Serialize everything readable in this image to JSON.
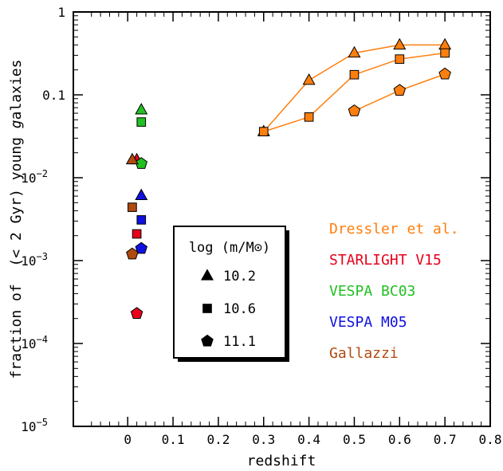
{
  "chart_data": {
    "type": "scatter",
    "xlabel": "redshift",
    "ylabel_parts": [
      "fraction of  (< 2 Gyr) young ",
      "g",
      "alaxies"
    ],
    "xlim": [
      -0.12,
      0.8
    ],
    "ylim": [
      1e-05,
      1
    ],
    "y_scale": "log",
    "x_ticks": [
      "0",
      "0.1",
      "0.2",
      "0.3",
      "0.4",
      "0.5",
      "0.6",
      "0.7",
      "0.8"
    ],
    "x_tick_values": [
      0,
      0.1,
      0.2,
      0.3,
      0.4,
      0.5,
      0.6,
      0.7,
      0.8
    ],
    "y_ticks": [
      {
        "value": 1,
        "label": "1",
        "sup": ""
      },
      {
        "value": 0.1,
        "label": "0.1",
        "sup": ""
      },
      {
        "value": 0.01,
        "label": "10",
        "sup": "−2"
      },
      {
        "value": 0.001,
        "label": "10",
        "sup": "−3"
      },
      {
        "value": 0.0001,
        "label": "10",
        "sup": "−4"
      },
      {
        "value": 1e-05,
        "label": "10",
        "sup": "−5"
      }
    ],
    "mass_legend": {
      "title": "log (m/M⊙)",
      "items": [
        {
          "marker": "triangle",
          "label": "10.2"
        },
        {
          "marker": "square",
          "label": "10.6"
        },
        {
          "marker": "pentagon",
          "label": "11.1"
        }
      ]
    },
    "sources": [
      {
        "name": "Dressler et al.",
        "color": "#ff7f0e"
      },
      {
        "name": "STARLIGHT V15",
        "color": "#e8001c"
      },
      {
        "name": "VESPA BC03",
        "color": "#22c022"
      },
      {
        "name": "VESPA M05",
        "color": "#1010e0"
      },
      {
        "name": "Gallazzi",
        "color": "#b04a10"
      }
    ],
    "series": [
      {
        "source": "Dressler et al.",
        "marker": "triangle",
        "line": true,
        "color": "#ff7f0e",
        "points": [
          [
            0.3,
            0.036
          ],
          [
            0.4,
            0.15
          ],
          [
            0.5,
            0.32
          ],
          [
            0.6,
            0.4
          ],
          [
            0.7,
            0.4
          ]
        ]
      },
      {
        "source": "Dressler et al.",
        "marker": "square",
        "line": true,
        "color": "#ff7f0e",
        "points": [
          [
            0.3,
            0.036
          ],
          [
            0.4,
            0.054
          ],
          [
            0.5,
            0.175
          ],
          [
            0.6,
            0.27
          ],
          [
            0.7,
            0.32
          ]
        ]
      },
      {
        "source": "Dressler et al.",
        "marker": "pentagon",
        "line": true,
        "color": "#ff7f0e",
        "points": [
          [
            0.5,
            0.064
          ],
          [
            0.6,
            0.113
          ],
          [
            0.7,
            0.178
          ]
        ]
      },
      {
        "source": "STARLIGHT V15",
        "marker": "triangle",
        "line": false,
        "color": "#e8001c",
        "points": [
          [
            0.02,
            0.0165
          ]
        ]
      },
      {
        "source": "STARLIGHT V15",
        "marker": "square",
        "line": false,
        "color": "#e8001c",
        "points": [
          [
            0.02,
            0.0021
          ]
        ]
      },
      {
        "source": "STARLIGHT V15",
        "marker": "pentagon",
        "line": false,
        "color": "#e8001c",
        "points": [
          [
            0.02,
            0.00023
          ]
        ]
      },
      {
        "source": "VESPA BC03",
        "marker": "triangle",
        "line": false,
        "color": "#22c022",
        "points": [
          [
            0.03,
            0.066
          ]
        ]
      },
      {
        "source": "VESPA BC03",
        "marker": "square",
        "line": false,
        "color": "#22c022",
        "points": [
          [
            0.03,
            0.047
          ]
        ]
      },
      {
        "source": "VESPA BC03",
        "marker": "pentagon",
        "line": false,
        "color": "#22c022",
        "points": [
          [
            0.03,
            0.0148
          ]
        ]
      },
      {
        "source": "VESPA M05",
        "marker": "triangle",
        "line": false,
        "color": "#1010e0",
        "points": [
          [
            0.03,
            0.0061
          ]
        ]
      },
      {
        "source": "VESPA M05",
        "marker": "square",
        "line": false,
        "color": "#1010e0",
        "points": [
          [
            0.03,
            0.0031
          ]
        ]
      },
      {
        "source": "VESPA M05",
        "marker": "pentagon",
        "line": false,
        "color": "#1010e0",
        "points": [
          [
            0.03,
            0.0014
          ]
        ]
      },
      {
        "source": "Gallazzi",
        "marker": "triangle",
        "line": false,
        "color": "#b04a10",
        "points": [
          [
            0.01,
            0.0165
          ]
        ]
      },
      {
        "source": "Gallazzi",
        "marker": "square",
        "line": false,
        "color": "#b04a10",
        "points": [
          [
            0.01,
            0.0044
          ]
        ]
      },
      {
        "source": "Gallazzi",
        "marker": "pentagon",
        "line": false,
        "color": "#b04a10",
        "points": [
          [
            0.01,
            0.0012
          ]
        ]
      }
    ]
  }
}
